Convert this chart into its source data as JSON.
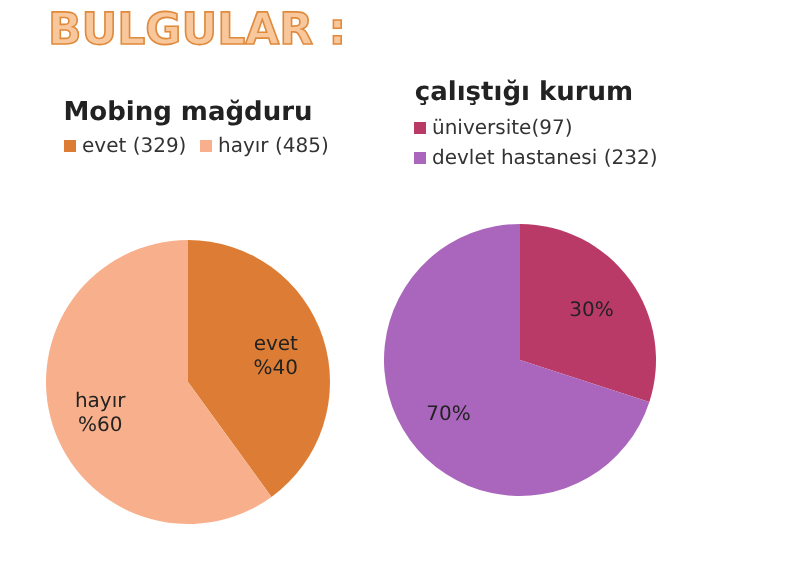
{
  "chart_data": [
    {
      "type": "pie",
      "title": "Mobing mağduru",
      "categories": [
        "evet (329)",
        "hayır (485)"
      ],
      "values": [
        40,
        60
      ],
      "colors": [
        "#dd7d35",
        "#f8b08c"
      ],
      "value_labels": [
        "evet %40",
        "hayır %60"
      ],
      "legend": "top",
      "annotations": [
        "BULGULAR :"
      ]
    },
    {
      "type": "pie",
      "title": "çalıştığı kurum",
      "categories": [
        "üniversite(97)",
        "devlet hastanesi (232)"
      ],
      "values": [
        30,
        70
      ],
      "colors": [
        "#b93a66",
        "#aa66bc"
      ],
      "value_labels": [
        "30%",
        "70%"
      ],
      "legend": "top"
    }
  ]
}
